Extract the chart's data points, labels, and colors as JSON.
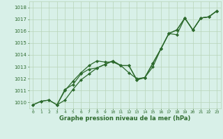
{
  "xlabel": "Graphe pression niveau de la mer (hPa)",
  "x": [
    0,
    1,
    2,
    3,
    4,
    5,
    6,
    7,
    8,
    9,
    10,
    11,
    12,
    13,
    14,
    15,
    16,
    17,
    18,
    19,
    20,
    21,
    22,
    23
  ],
  "line1": [
    1009.8,
    1010.1,
    1010.2,
    1009.8,
    1011.1,
    1011.5,
    1012.4,
    1012.8,
    1012.9,
    1013.2,
    1013.5,
    1013.1,
    1013.1,
    1011.9,
    1012.1,
    1013.3,
    1014.5,
    1015.8,
    1016.1,
    1017.1,
    1016.1,
    1017.1,
    1017.2,
    1017.7
  ],
  "line2": [
    1009.8,
    1010.1,
    1010.2,
    1009.8,
    1011.0,
    1011.8,
    1012.5,
    1013.1,
    1013.5,
    1013.4,
    1013.4,
    1013.1,
    1012.5,
    1012.0,
    1012.1,
    1013.0,
    1014.5,
    1015.8,
    1015.7,
    1017.1,
    1016.1,
    1017.1,
    1017.2,
    1017.7
  ],
  "line3": [
    null,
    null,
    null,
    1009.8,
    1010.2,
    1011.1,
    1011.9,
    1012.4,
    1012.9,
    1013.2,
    1013.5,
    1013.1,
    1013.1,
    1011.9,
    1012.1,
    1013.3,
    1014.5,
    1015.8,
    1016.1,
    1017.1,
    1016.1,
    1017.1,
    1017.2,
    1017.7
  ],
  "ylim": [
    1009.5,
    1018.5
  ],
  "yticks": [
    1010,
    1011,
    1012,
    1013,
    1014,
    1015,
    1016,
    1017,
    1018
  ],
  "xticks": [
    0,
    1,
    2,
    3,
    4,
    5,
    6,
    7,
    8,
    9,
    10,
    11,
    12,
    13,
    14,
    15,
    16,
    17,
    18,
    19,
    20,
    21,
    22,
    23
  ],
  "line_color": "#2d6a2d",
  "bg_color": "#d8f0e8",
  "grid_color": "#b8d4b8",
  "label_color": "#2d6a2d",
  "marker": "D",
  "marker_size": 2,
  "linewidth": 0.9
}
